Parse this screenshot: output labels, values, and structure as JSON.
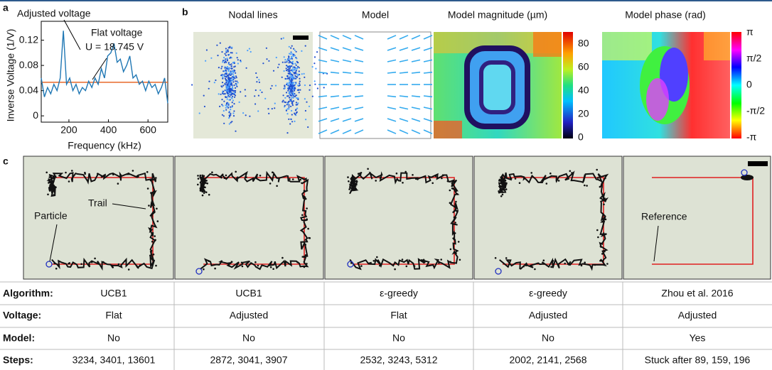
{
  "chart_data": {
    "type": "line",
    "label": "a",
    "xlabel": "Frequency (kHz)",
    "ylabel": "Inverse Voltage (1/V)",
    "x": [
      60,
      76,
      92,
      108,
      124,
      140,
      156,
      172,
      188,
      204,
      220,
      236,
      252,
      268,
      284,
      300,
      316,
      332,
      348,
      364,
      380,
      396,
      412,
      428,
      444,
      460,
      476,
      492,
      508,
      524,
      540,
      556,
      572,
      588,
      604,
      620,
      636,
      652,
      668,
      684,
      700
    ],
    "series": [
      {
        "name": "Adjusted voltage",
        "color": "#1f77b4",
        "values": [
          0.06,
          0.03,
          0.045,
          0.035,
          0.05,
          0.04,
          0.06,
          0.135,
          0.05,
          0.06,
          0.04,
          0.05,
          0.035,
          0.045,
          0.04,
          0.055,
          0.045,
          0.06,
          0.05,
          0.075,
          0.06,
          0.095,
          0.1,
          0.115,
          0.085,
          0.09,
          0.07,
          0.08,
          0.095,
          0.06,
          0.065,
          0.05,
          0.055,
          0.04,
          0.055,
          0.045,
          0.05,
          0.035,
          0.045,
          0.06,
          0.02
        ]
      }
    ],
    "hlines": [
      {
        "name": "Flat voltage",
        "value": 0.0533,
        "color": "#e8692a"
      }
    ],
    "annotation": "U = 18.745 V",
    "xlim": [
      60,
      700
    ],
    "ylim": [
      -0.01,
      0.15
    ],
    "xticks": [
      200,
      400,
      600
    ],
    "yticks": [
      0,
      0.04,
      0.08,
      0.12
    ]
  },
  "panel_b": {
    "label": "b",
    "titles": [
      "Nodal lines",
      "Model",
      "Model magnitude (µm)",
      "Model phase (rad)"
    ],
    "magnitude_ticks": [
      "80",
      "60",
      "40",
      "20",
      "0"
    ],
    "phase_ticks": [
      "π",
      "π/2",
      "0",
      "-π/2",
      "-π"
    ]
  },
  "panel_c": {
    "label": "c",
    "annotations": [
      "Particle",
      "Trail",
      "Reference"
    ]
  },
  "table": {
    "row_labels": [
      "Algorithm:",
      "Voltage:",
      "Model:",
      "Steps:"
    ],
    "columns": [
      [
        "UCB1",
        "Flat",
        "No",
        "3234, 3401, 13601"
      ],
      [
        "UCB1",
        "Adjusted",
        "No",
        "2872, 3041, 3907"
      ],
      [
        "ε-greedy",
        "Flat",
        "No",
        "2532, 3243, 5312"
      ],
      [
        "ε-greedy",
        "Adjusted",
        "No",
        "2002, 2141, 2568"
      ],
      [
        "Zhou et al. 2016",
        "Adjusted",
        "Yes",
        "Stuck after 89, 159, 196"
      ]
    ]
  }
}
